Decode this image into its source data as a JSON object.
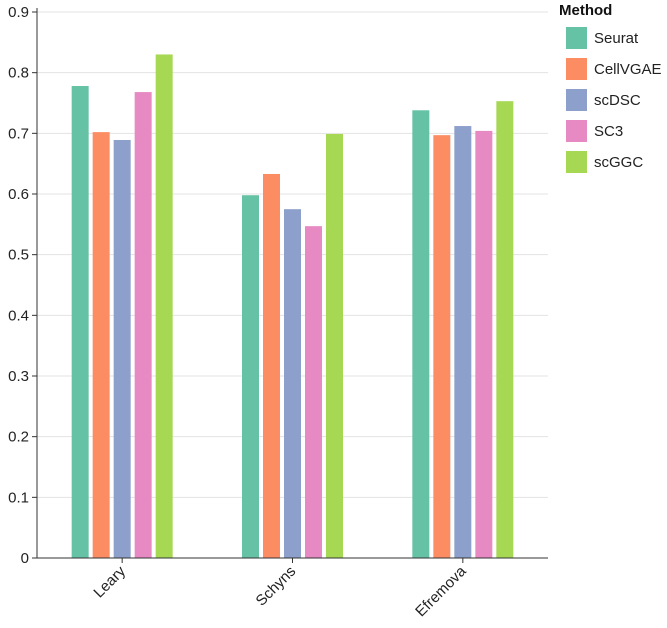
{
  "chart_data": {
    "type": "bar",
    "title": "",
    "xlabel": "",
    "ylabel": "",
    "ylim": [
      0,
      0.9
    ],
    "yticks": [
      "0",
      "0.1",
      "0.2",
      "0.3",
      "0.4",
      "0.5",
      "0.6",
      "0.7",
      "0.8",
      "0.9"
    ],
    "grid": true,
    "categories": [
      "Leary",
      "Schyns",
      "Efremova"
    ],
    "legend": {
      "title": "Method",
      "placement": "top-right"
    },
    "series": [
      {
        "name": "Seurat",
        "color": "#66c2a5",
        "values": [
          0.778,
          0.598,
          0.738
        ]
      },
      {
        "name": "CellVGAE",
        "color": "#fc8d62",
        "values": [
          0.702,
          0.633,
          0.697
        ]
      },
      {
        "name": "scDSC",
        "color": "#8da0cb",
        "values": [
          0.689,
          0.575,
          0.712
        ]
      },
      {
        "name": "SC3",
        "color": "#e78ac3",
        "values": [
          0.768,
          0.547,
          0.704
        ]
      },
      {
        "name": "scGGC",
        "color": "#a6d854",
        "values": [
          0.83,
          0.699,
          0.753
        ]
      }
    ]
  }
}
